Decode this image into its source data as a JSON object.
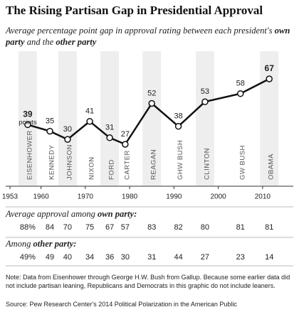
{
  "chart_data": {
    "type": "line",
    "title": "The Rising Partisan Gap in Presidential Approval",
    "subtitle": [
      "Average percentage point gap in approval rating between each president's ",
      "own party",
      " and the ",
      "other party"
    ],
    "presidents": [
      "EISENHOWER",
      "KENNEDY",
      "JOHNSON",
      "NIXON",
      "FORD",
      "CARTER",
      "REAGAN",
      "GHW BUSH",
      "CLINTON",
      "GW BUSH",
      "OBAMA"
    ],
    "x": [
      1957,
      1962,
      1966,
      1971,
      1975.5,
      1979,
      1985,
      1991,
      1997,
      2005,
      2011.5
    ],
    "values": [
      39,
      35,
      30,
      41,
      31,
      27,
      52,
      38,
      53,
      58,
      67
    ],
    "first_label_unit": "points",
    "color": "#111111",
    "xlim": [
      1953,
      2015
    ],
    "xticks": [
      1953,
      1960,
      1970,
      1980,
      1990,
      2000,
      2010
    ],
    "ylim": [
      20,
      75
    ],
    "own_party": {
      "label": [
        "Average approval among ",
        "own party:"
      ],
      "values": [
        "88%",
        "84",
        "70",
        "75",
        "67",
        "57",
        "83",
        "82",
        "80",
        "81",
        "81"
      ]
    },
    "other_party": {
      "label": [
        "Among ",
        "other party:"
      ],
      "values": [
        "49%",
        "49",
        "40",
        "34",
        "36",
        "30",
        "31",
        "44",
        "27",
        "23",
        "14"
      ]
    },
    "note": "Note: Data from Eisenhower through George H.W. Bush from Gallup. Because some earlier data did not include partisan leaning, Republicans and Democrats in this graphic do not include leaners.",
    "source": "Source: Pew Research Center's 2014 Political Polarization in the American Public"
  }
}
